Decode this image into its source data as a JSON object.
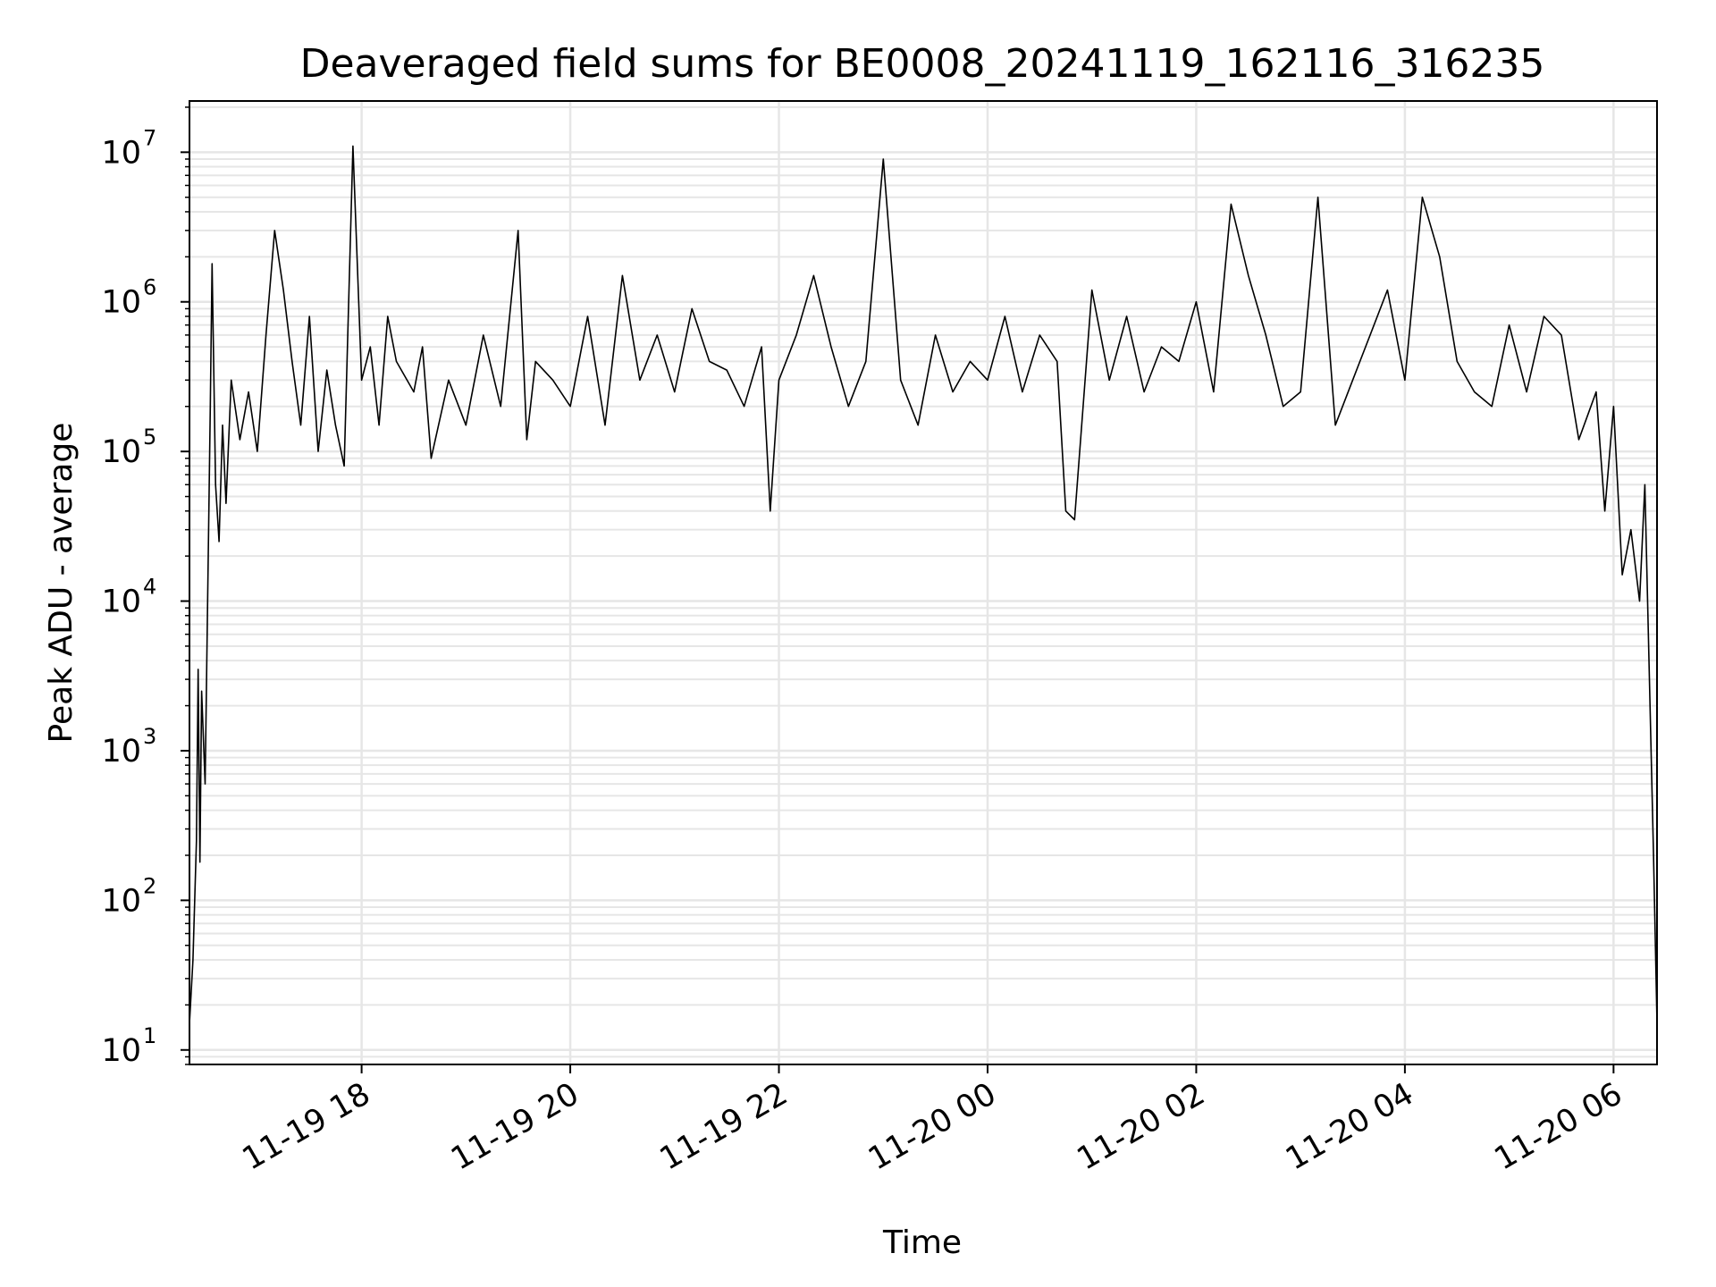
{
  "chart_data": {
    "type": "line",
    "title": "Deaveraged field sums for BE0008_20241119_162116_316235",
    "xlabel": "Time",
    "ylabel": "Peak ADU - average",
    "y_scale": "log",
    "ylim": [
      8,
      22000000
    ],
    "xlim": [
      "2024-11-19 16:21",
      "2024-11-20 06:25"
    ],
    "grid": true,
    "line_color": "#000000",
    "grid_color": "#e6e6e6",
    "x_ticks": [
      {
        "value": "2024-11-19 18:00",
        "label": "11-19 18"
      },
      {
        "value": "2024-11-19 20:00",
        "label": "11-19 20"
      },
      {
        "value": "2024-11-19 22:00",
        "label": "11-19 22"
      },
      {
        "value": "2024-11-20 00:00",
        "label": "11-20 00"
      },
      {
        "value": "2024-11-20 02:00",
        "label": "11-20 02"
      },
      {
        "value": "2024-11-20 04:00",
        "label": "11-20 04"
      },
      {
        "value": "2024-11-20 06:00",
        "label": "11-20 06"
      }
    ],
    "y_ticks": [
      {
        "value": 10,
        "base": "10",
        "exp": "1"
      },
      {
        "value": 100,
        "base": "10",
        "exp": "2"
      },
      {
        "value": 1000,
        "base": "10",
        "exp": "3"
      },
      {
        "value": 10000,
        "base": "10",
        "exp": "4"
      },
      {
        "value": 100000,
        "base": "10",
        "exp": "5"
      },
      {
        "value": 1000000,
        "base": "10",
        "exp": "6"
      },
      {
        "value": 10000000,
        "base": "10",
        "exp": "7"
      }
    ],
    "series": [
      {
        "x": [
          "2024-11-19 16:21",
          "2024-11-19 16:23",
          "2024-11-19 16:25",
          "2024-11-19 16:26",
          "2024-11-19 16:27",
          "2024-11-19 16:28",
          "2024-11-19 16:30",
          "2024-11-19 16:33",
          "2024-11-19 16:34",
          "2024-11-19 16:36",
          "2024-11-19 16:38",
          "2024-11-19 16:40",
          "2024-11-19 16:42",
          "2024-11-19 16:45",
          "2024-11-19 16:50",
          "2024-11-19 16:55",
          "2024-11-19 17:00",
          "2024-11-19 17:05",
          "2024-11-19 17:10",
          "2024-11-19 17:15",
          "2024-11-19 17:20",
          "2024-11-19 17:25",
          "2024-11-19 17:30",
          "2024-11-19 17:35",
          "2024-11-19 17:40",
          "2024-11-19 17:45",
          "2024-11-19 17:50",
          "2024-11-19 17:55",
          "2024-11-19 18:00",
          "2024-11-19 18:05",
          "2024-11-19 18:10",
          "2024-11-19 18:15",
          "2024-11-19 18:20",
          "2024-11-19 18:30",
          "2024-11-19 18:35",
          "2024-11-19 18:40",
          "2024-11-19 18:50",
          "2024-11-19 19:00",
          "2024-11-19 19:10",
          "2024-11-19 19:20",
          "2024-11-19 19:30",
          "2024-11-19 19:35",
          "2024-11-19 19:40",
          "2024-11-19 19:50",
          "2024-11-19 20:00",
          "2024-11-19 20:10",
          "2024-11-19 20:20",
          "2024-11-19 20:30",
          "2024-11-19 20:40",
          "2024-11-19 20:50",
          "2024-11-19 21:00",
          "2024-11-19 21:10",
          "2024-11-19 21:20",
          "2024-11-19 21:30",
          "2024-11-19 21:40",
          "2024-11-19 21:50",
          "2024-11-19 21:55",
          "2024-11-19 22:00",
          "2024-11-19 22:10",
          "2024-11-19 22:20",
          "2024-11-19 22:30",
          "2024-11-19 22:40",
          "2024-11-19 22:50",
          "2024-11-19 23:00",
          "2024-11-19 23:10",
          "2024-11-19 23:20",
          "2024-11-19 23:30",
          "2024-11-19 23:40",
          "2024-11-19 23:50",
          "2024-11-20 00:00",
          "2024-11-20 00:10",
          "2024-11-20 00:20",
          "2024-11-20 00:30",
          "2024-11-20 00:40",
          "2024-11-20 00:45",
          "2024-11-20 00:50",
          "2024-11-20 01:00",
          "2024-11-20 01:10",
          "2024-11-20 01:20",
          "2024-11-20 01:30",
          "2024-11-20 01:40",
          "2024-11-20 01:50",
          "2024-11-20 02:00",
          "2024-11-20 02:10",
          "2024-11-20 02:20",
          "2024-11-20 02:30",
          "2024-11-20 02:40",
          "2024-11-20 02:50",
          "2024-11-20 03:00",
          "2024-11-20 03:10",
          "2024-11-20 03:20",
          "2024-11-20 03:30",
          "2024-11-20 03:40",
          "2024-11-20 03:50",
          "2024-11-20 04:00",
          "2024-11-20 04:10",
          "2024-11-20 04:20",
          "2024-11-20 04:30",
          "2024-11-20 04:40",
          "2024-11-20 04:50",
          "2024-11-20 05:00",
          "2024-11-20 05:10",
          "2024-11-20 05:20",
          "2024-11-20 05:30",
          "2024-11-20 05:40",
          "2024-11-20 05:50",
          "2024-11-20 05:55",
          "2024-11-20 06:00",
          "2024-11-20 06:05",
          "2024-11-20 06:10",
          "2024-11-20 06:15",
          "2024-11-20 06:18",
          "2024-11-20 06:21",
          "2024-11-20 06:23",
          "2024-11-20 06:25"
        ],
        "y": [
          15,
          40,
          250,
          3500,
          180,
          2500,
          600,
          200000,
          1800000,
          60000,
          25000,
          150000,
          45000,
          300000,
          120000,
          250000,
          100000,
          600000,
          3000000,
          1200000,
          400000,
          150000,
          800000,
          100000,
          350000,
          150000,
          80000,
          11000000,
          300000,
          500000,
          150000,
          800000,
          400000,
          250000,
          500000,
          90000,
          300000,
          150000,
          600000,
          200000,
          3000000,
          120000,
          400000,
          300000,
          200000,
          800000,
          150000,
          1500000,
          300000,
          600000,
          250000,
          900000,
          400000,
          350000,
          200000,
          500000,
          40000,
          300000,
          600000,
          1500000,
          500000,
          200000,
          400000,
          9000000,
          300000,
          150000,
          600000,
          250000,
          400000,
          300000,
          800000,
          250000,
          600000,
          400000,
          40000,
          35000,
          1200000,
          300000,
          800000,
          250000,
          500000,
          400000,
          1000000,
          250000,
          4500000,
          1500000,
          600000,
          200000,
          250000,
          5000000,
          150000,
          300000,
          600000,
          1200000,
          300000,
          5000000,
          2000000,
          400000,
          250000,
          200000,
          700000,
          250000,
          800000,
          600000,
          120000,
          250000,
          40000,
          200000,
          15000,
          30000,
          10000,
          60000,
          2000,
          200,
          15
        ]
      }
    ]
  }
}
